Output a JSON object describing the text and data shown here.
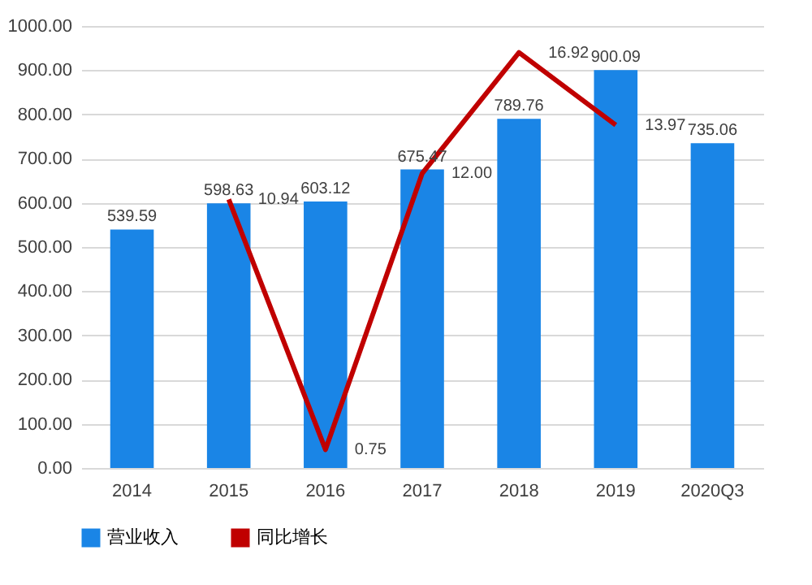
{
  "chart_data": {
    "type": "bar",
    "categories": [
      "2014",
      "2015",
      "2016",
      "2017",
      "2018",
      "2019",
      "2020Q3"
    ],
    "series": [
      {
        "name": "营业收入",
        "color": "#1a85e6",
        "values": [
          539.59,
          598.63,
          603.12,
          675.47,
          789.76,
          900.09,
          735.06
        ],
        "value_labels": [
          "539.59",
          "598.63",
          "603.12",
          "675.47",
          "789.76",
          "900.09",
          "735.06"
        ]
      },
      {
        "name": "同比增长",
        "type": "line",
        "axis": "y2",
        "color": "#c00000",
        "values": [
          null,
          10.94,
          0.75,
          12.0,
          16.92,
          13.97,
          null
        ],
        "value_labels": [
          null,
          "10.94",
          "0.75",
          "12.00",
          "16.92",
          "13.97",
          null
        ]
      }
    ],
    "ylim": [
      0,
      1000
    ],
    "yticks": [
      {
        "value": 0,
        "label": "0.00"
      },
      {
        "value": 100,
        "label": "100.00"
      },
      {
        "value": 200,
        "label": "200.00"
      },
      {
        "value": 300,
        "label": "300.00"
      },
      {
        "value": 400,
        "label": "400.00"
      },
      {
        "value": 500,
        "label": "500.00"
      },
      {
        "value": 600,
        "label": "600.00"
      },
      {
        "value": 700,
        "label": "700.00"
      },
      {
        "value": 800,
        "label": "800.00"
      },
      {
        "value": 900,
        "label": "900.00"
      },
      {
        "value": 1000,
        "label": "1000.00"
      }
    ],
    "y2lim": [
      0,
      18
    ],
    "grid": "y",
    "legend": "bottom"
  }
}
